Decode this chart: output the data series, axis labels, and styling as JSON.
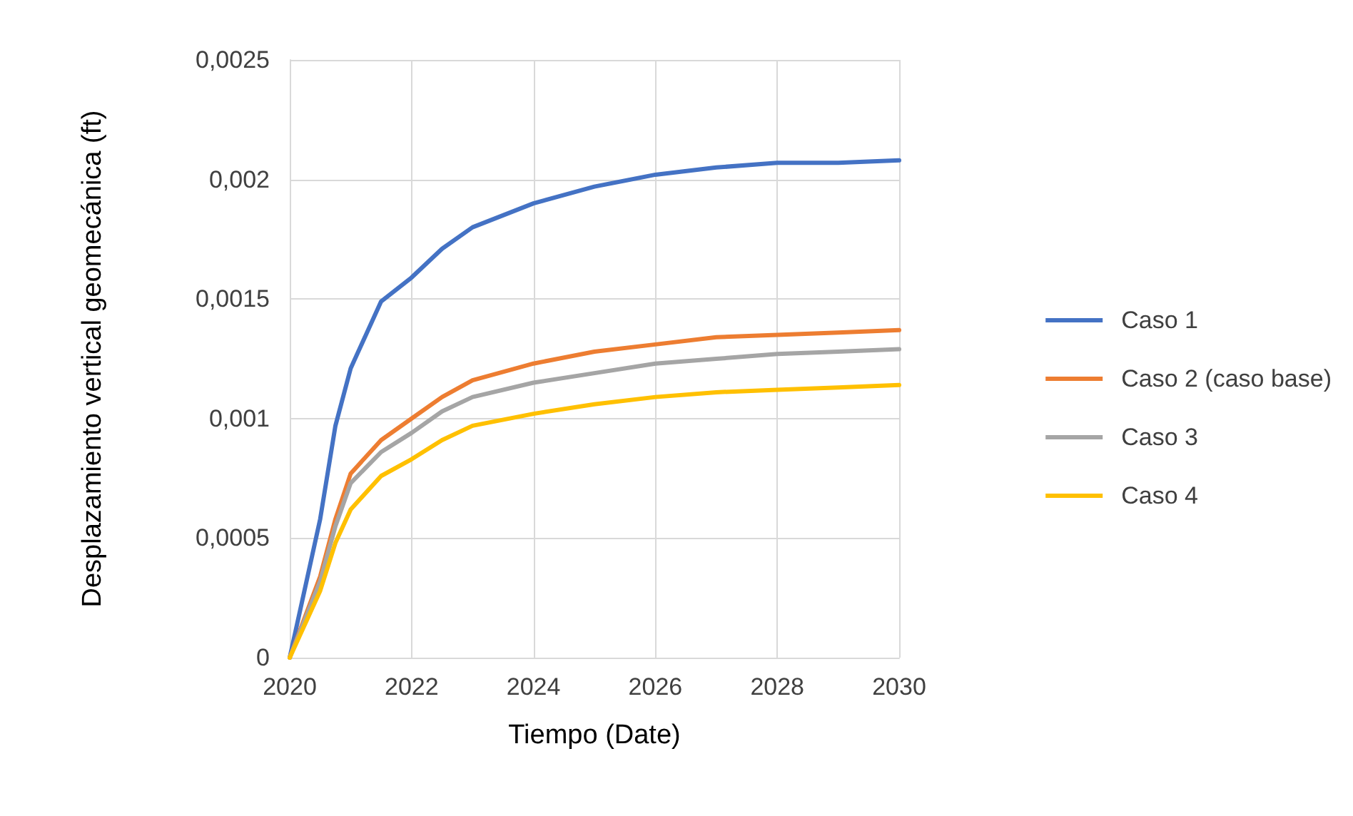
{
  "chart_data": {
    "type": "line",
    "xlabel": "Tiempo (Date)",
    "ylabel": "Desplazamiento vertical geomecánica (ft)",
    "x": [
      2020,
      2020.5,
      2020.75,
      2021,
      2021.5,
      2022,
      2022.5,
      2023,
      2024,
      2025,
      2026,
      2027,
      2028,
      2029,
      2030
    ],
    "series": [
      {
        "name": "Caso 1",
        "color": "#4472c4",
        "values": [
          0,
          0.00058,
          0.00097,
          0.00121,
          0.00149,
          0.00159,
          0.00171,
          0.0018,
          0.0019,
          0.00197,
          0.00202,
          0.00205,
          0.00207,
          0.00207,
          0.00208
        ]
      },
      {
        "name": "Caso 2 (caso base)",
        "color": "#ed7d31",
        "values": [
          0,
          0.00034,
          0.00058,
          0.00077,
          0.00091,
          0.001,
          0.00109,
          0.00116,
          0.00123,
          0.00128,
          0.00131,
          0.00134,
          0.00135,
          0.00136,
          0.00137
        ]
      },
      {
        "name": "Caso 3",
        "color": "#a5a5a5",
        "values": [
          0,
          0.00032,
          0.00055,
          0.00073,
          0.00086,
          0.00094,
          0.00103,
          0.00109,
          0.00115,
          0.00119,
          0.00123,
          0.00125,
          0.00127,
          0.00128,
          0.00129
        ]
      },
      {
        "name": "Caso 4",
        "color": "#ffc000",
        "values": [
          0,
          0.00028,
          0.00048,
          0.00062,
          0.00076,
          0.00083,
          0.00091,
          0.00097,
          0.00102,
          0.00106,
          0.00109,
          0.00111,
          0.00112,
          0.00113,
          0.00114
        ]
      }
    ],
    "xlim": [
      2020,
      2030
    ],
    "xticks": [
      2020,
      2022,
      2024,
      2026,
      2028,
      2030
    ],
    "ylim": [
      0,
      0.0025
    ],
    "yticks": [
      0,
      {
        "value": 0.0005,
        "label": "0,0005"
      },
      {
        "value": 0.001,
        "label": "0,001"
      },
      {
        "value": 0.0015,
        "label": "0,0015"
      },
      {
        "value": 0.002,
        "label": "0,002"
      },
      {
        "value": 0.0025,
        "label": "0,0025"
      }
    ],
    "grid": true,
    "legend": "right",
    "marker": "none",
    "line_style": "solid"
  }
}
